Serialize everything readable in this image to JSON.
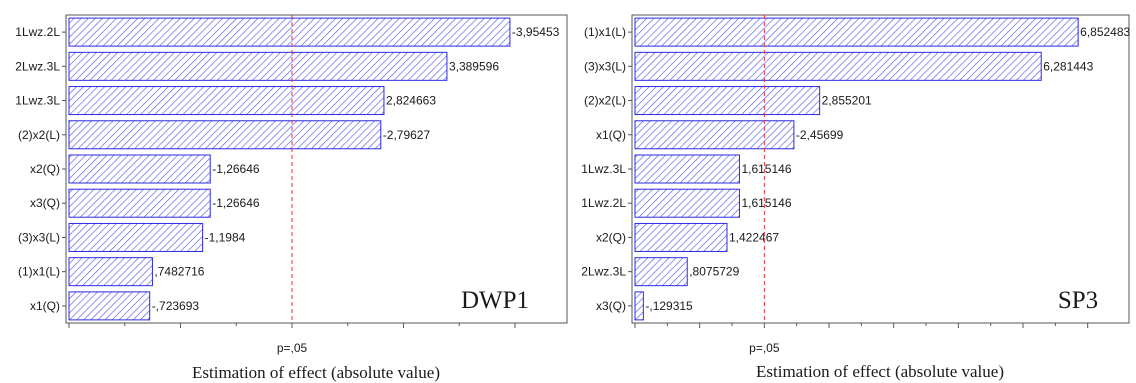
{
  "colors": {
    "bar_stroke": "#2a2ae6",
    "bar_hatch": "#5a5aef",
    "bar_fill": "#ffffff",
    "ref_line": "#e8312f",
    "axis": "#555555",
    "text": "#1a1a1a"
  },
  "chart_data": [
    {
      "type": "bar",
      "orientation": "horizontal",
      "title": "DWP1",
      "xlabel": "Estimation of effect (absolute value)",
      "reference_line": {
        "label": "p=,05",
        "value": 2.0
      },
      "xlim": [
        0,
        4.2
      ],
      "categories": [
        "1Lwz.2L",
        "2Lwz.3L",
        "1Lwz.3L",
        "(2)x2(L)",
        "x2(Q)",
        "x3(Q)",
        "(3)x3(L)",
        "(1)x1(L)",
        "x1(Q)"
      ],
      "labels": [
        "-3,95453",
        "3,389596",
        "2,824663",
        "-2,79627",
        "-1,26646",
        "-1,26646",
        "-1,1984",
        ",7482716",
        "-,723693"
      ],
      "values": [
        3.95453,
        3.389596,
        2.824663,
        2.79627,
        1.26646,
        1.26646,
        1.1984,
        0.7482716,
        0.723693
      ]
    },
    {
      "type": "bar",
      "orientation": "horizontal",
      "title": "SP3",
      "xlabel": "Estimation of effect (absolute value)",
      "reference_line": {
        "label": "p=,05",
        "value": 2.0
      },
      "xlim": [
        0,
        7.2
      ],
      "categories": [
        "(1)x1(L)",
        "(3)x3(L)",
        "(2)x2(L)",
        "x1(Q)",
        "1Lwz.3L",
        "1Lwz.2L",
        "x2(Q)",
        "2Lwz.3L",
        "x3(Q)"
      ],
      "labels": [
        "6,852483",
        "6,281443",
        "2,855201",
        "-2,45699",
        "1,615146",
        "1,615146",
        "1,422467",
        ",8075729",
        "-,129315"
      ],
      "values": [
        6.852483,
        6.281443,
        2.855201,
        2.45699,
        1.615146,
        1.615146,
        1.422467,
        0.8075729,
        0.129315
      ]
    }
  ]
}
